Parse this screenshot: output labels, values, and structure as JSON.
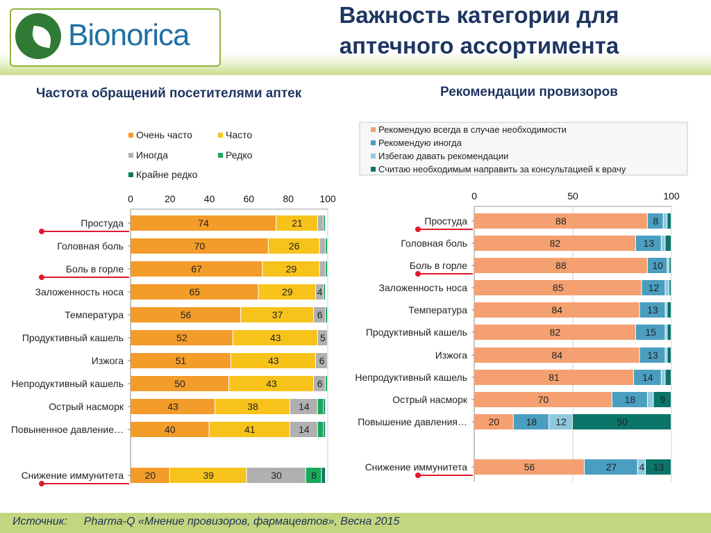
{
  "brand": "Bionorica",
  "title_line1": "Важность категории для",
  "title_line2": "аптечного ассортимента",
  "left_subtitle": "Частота обращений посетителями аптек",
  "right_subtitle": "Рекомендации провизоров",
  "footer": {
    "label": "Источник:",
    "text": "Pharma-Q «Мнение провизоров, фармацевтов», Весна 2015"
  },
  "colors": {
    "orange": "#f39c2a",
    "yellow": "#f7c31b",
    "gray": "#b0b0b0",
    "green": "#1aa85a",
    "darkgreen": "#0b7b63",
    "salmon": "#f5a071",
    "teal": "#4a9ec0",
    "lightblue": "#8fc9e0",
    "darkteal": "#0a7568"
  },
  "chart_data": [
    {
      "type": "bar",
      "orientation": "horizontal-stacked",
      "xlim": [
        0,
        100
      ],
      "xticks": [
        0,
        20,
        40,
        60,
        80,
        100
      ],
      "categories": [
        "Простуда",
        "Головная боль",
        "Боль в горле",
        "Заложенность носа",
        "Температура",
        "Продуктивный кашель",
        "Изжога",
        "Непродуктивный кашель",
        "Острый насморк",
        "Повыненное давление…",
        "Снижение иммунитета"
      ],
      "highlighted": [
        "Простуда",
        "Боль в горле",
        "Снижение иммунитета"
      ],
      "series": [
        {
          "name": "Очень часто",
          "color": "#f39c2a",
          "values": [
            74,
            70,
            67,
            65,
            56,
            52,
            51,
            50,
            43,
            40,
            20
          ]
        },
        {
          "name": "Часто",
          "color": "#f7c31b",
          "values": [
            21,
            26,
            29,
            29,
            37,
            43,
            43,
            43,
            38,
            41,
            39
          ]
        },
        {
          "name": "Иногда",
          "color": "#b0b0b0",
          "values": [
            3,
            3,
            3,
            4,
            6,
            5,
            6,
            6,
            14,
            14,
            30
          ]
        },
        {
          "name": "Редко",
          "color": "#1aa85a",
          "values": [
            1,
            1,
            1,
            1,
            1,
            0,
            0,
            1,
            3,
            3,
            8
          ]
        },
        {
          "name": "Крайне редко",
          "color": "#0b7b63",
          "values": [
            0,
            0,
            0,
            0,
            0,
            0,
            0,
            0,
            1,
            1,
            2
          ]
        }
      ],
      "label_threshold": 4,
      "legend_placement": "top"
    },
    {
      "type": "bar",
      "orientation": "horizontal-stacked",
      "xlim": [
        0,
        100
      ],
      "xticks": [
        0,
        50,
        100
      ],
      "categories": [
        "Простуда",
        "Головная боль",
        "Боль в горле",
        "Заложенность носа",
        "Температура",
        "Продуктивный кашель",
        "Изжога",
        "Непродуктивный кашель",
        "Острый насморк",
        "Повышение давления…",
        "Снижение иммунитета"
      ],
      "highlighted": [
        "Простуда",
        "Боль в горле",
        "Снижение иммунитета"
      ],
      "series": [
        {
          "name": "Рекомендую всегда в случае необходимости",
          "color": "#f5a071",
          "values": [
            88,
            82,
            88,
            85,
            84,
            82,
            84,
            81,
            70,
            20,
            56
          ]
        },
        {
          "name": "Рекомендую иногда",
          "color": "#4a9ec0",
          "values": [
            8,
            13,
            10,
            12,
            13,
            15,
            13,
            14,
            18,
            18,
            27
          ]
        },
        {
          "name": "Избегаю давать рекомендации",
          "color": "#8fc9e0",
          "values": [
            2,
            2,
            1,
            2,
            1,
            1,
            1,
            2,
            3,
            12,
            4
          ]
        },
        {
          "name": "Считаю необходимым направить за консультацией к врачу",
          "color": "#0a7568",
          "values": [
            2,
            3,
            1,
            1,
            2,
            2,
            2,
            3,
            9,
            50,
            13
          ]
        }
      ],
      "label_threshold": 4,
      "legend_placement": "top"
    }
  ]
}
